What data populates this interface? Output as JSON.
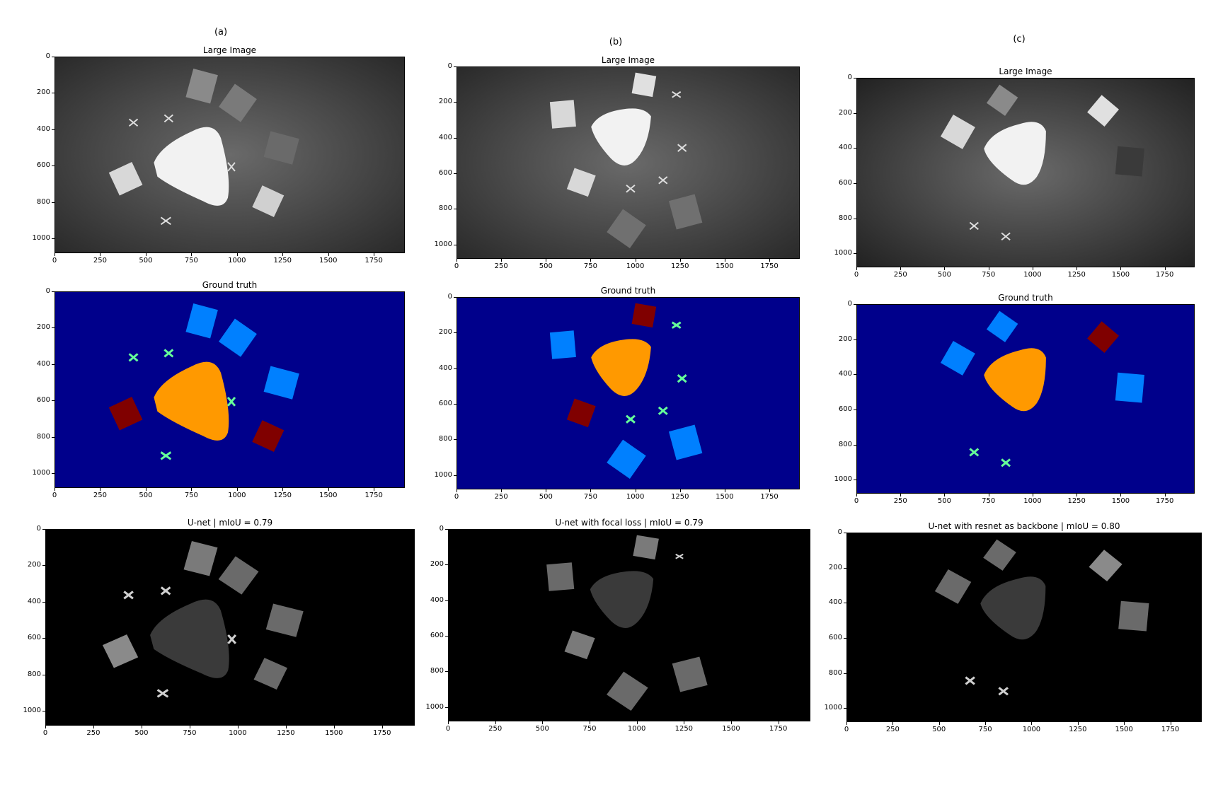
{
  "columns": [
    {
      "label": "(a)",
      "panels": [
        {
          "title": "Large Image",
          "kind": "photo",
          "yticks": [
            "0",
            "200",
            "400",
            "600",
            "800",
            "1000"
          ],
          "xticks": [
            "0",
            "250",
            "500",
            "750",
            "1000",
            "1250",
            "1500",
            "1750"
          ]
        },
        {
          "title": "Ground truth",
          "kind": "gt",
          "yticks": [
            "0",
            "200",
            "400",
            "600",
            "800",
            "1000"
          ],
          "xticks": [
            "0",
            "250",
            "500",
            "750",
            "1000",
            "1250",
            "1500",
            "1750"
          ]
        },
        {
          "title": "U-net | mIoU = 0.79",
          "kind": "pred",
          "yticks": [
            "0",
            "200",
            "400",
            "600",
            "800",
            "1000"
          ],
          "xticks": [
            "0",
            "250",
            "500",
            "750",
            "1000",
            "1250",
            "1500",
            "1750"
          ]
        }
      ]
    },
    {
      "label": "(b)",
      "panels": [
        {
          "title": "Large Image",
          "kind": "photo",
          "yticks": [
            "0",
            "200",
            "400",
            "600",
            "800",
            "1000"
          ],
          "xticks": [
            "0",
            "250",
            "500",
            "750",
            "1000",
            "1250",
            "1500",
            "1750"
          ]
        },
        {
          "title": "Ground truth",
          "kind": "gt",
          "yticks": [
            "0",
            "200",
            "400",
            "600",
            "800",
            "1000"
          ],
          "xticks": [
            "0",
            "250",
            "500",
            "750",
            "1000",
            "1250",
            "1500",
            "1750"
          ]
        },
        {
          "title": "U-net with focal loss | mIoU = 0.79",
          "kind": "pred",
          "yticks": [
            "0",
            "200",
            "400",
            "600",
            "800",
            "1000"
          ],
          "xticks": [
            "0",
            "250",
            "500",
            "750",
            "1000",
            "1250",
            "1500",
            "1750"
          ]
        }
      ]
    },
    {
      "label": "(c)",
      "panels": [
        {
          "title": "Large Image",
          "kind": "photo",
          "yticks": [
            "0",
            "200",
            "400",
            "600",
            "800",
            "1000"
          ],
          "xticks": [
            "0",
            "250",
            "500",
            "750",
            "1000",
            "1250",
            "1500",
            "1750"
          ]
        },
        {
          "title": "Ground truth",
          "kind": "gt",
          "yticks": [
            "0",
            "200",
            "400",
            "600",
            "800",
            "1000"
          ],
          "xticks": [
            "0",
            "250",
            "500",
            "750",
            "1000",
            "1250",
            "1500",
            "1750"
          ]
        },
        {
          "title": "U-net with resnet as backbone | mIoU = 0.80",
          "kind": "pred",
          "yticks": [
            "0",
            "200",
            "400",
            "600",
            "800",
            "1000"
          ],
          "xticks": [
            "0",
            "250",
            "500",
            "750",
            "1000",
            "1250",
            "1500",
            "1750"
          ]
        }
      ]
    }
  ],
  "colors": {
    "gt_background": "#00008b",
    "gt_robot_base": "#ff9900",
    "gt_box_blue": "#0080ff",
    "gt_box_red": "#800000",
    "gt_drone": "#66ff99",
    "photo_background": "#4a4a4a",
    "pred_background": "#000000"
  }
}
